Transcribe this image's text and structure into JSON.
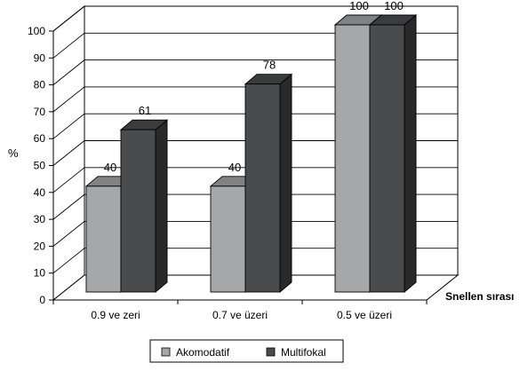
{
  "chart_data": {
    "type": "bar",
    "categories": [
      "0.9 ve zeri",
      "0.7 ve üzeri",
      "0.5 ve üzeri"
    ],
    "series": [
      {
        "name": "Akomodatif",
        "values": [
          40,
          40,
          100
        ],
        "color": "#a6a7a9"
      },
      {
        "name": "Multifokal",
        "values": [
          61,
          78,
          100
        ],
        "color": "#4a4b4d"
      }
    ],
    "title": "",
    "xlabel": "Snellen sırası",
    "ylabel": "%",
    "ylim": [
      0,
      100
    ],
    "yticks": [
      0,
      10,
      20,
      30,
      40,
      50,
      60,
      70,
      80,
      90,
      100
    ],
    "grid": true,
    "style": "3d",
    "legend": "bottom"
  }
}
